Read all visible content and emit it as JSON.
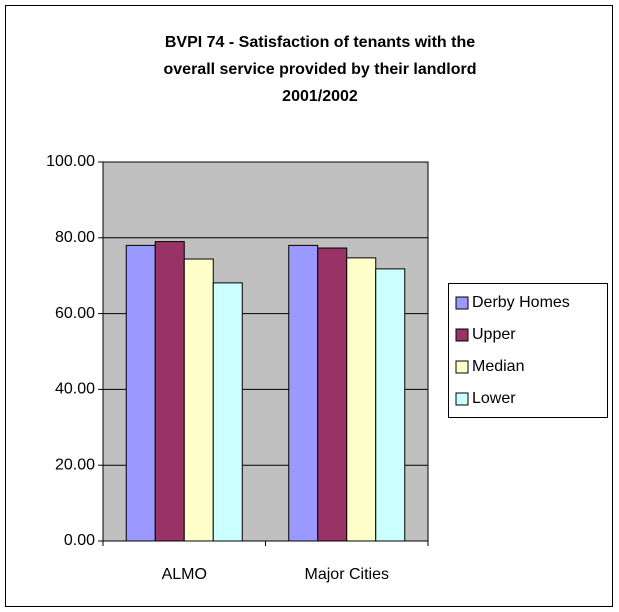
{
  "chart_data": {
    "type": "bar",
    "title": [
      "BVPI 74 - Satisfaction of tenants with the",
      "overall service provided by their landlord",
      "2001/2002"
    ],
    "categories": [
      "ALMO",
      "Major Cities"
    ],
    "series": [
      {
        "name": "Derby Homes",
        "color": "#9999ff",
        "values": [
          78,
          78
        ]
      },
      {
        "name": "Upper",
        "color": "#993366",
        "values": [
          79,
          77.3
        ]
      },
      {
        "name": "Median",
        "color": "#ffffcc",
        "values": [
          74.4,
          74.7
        ]
      },
      {
        "name": "Lower",
        "color": "#ccffff",
        "values": [
          68.1,
          71.8
        ]
      }
    ],
    "ylim": [
      0,
      100
    ],
    "yticks": [
      {
        "value": 0,
        "label": "0.00"
      },
      {
        "value": 20,
        "label": "20.00"
      },
      {
        "value": 40,
        "label": "40.00"
      },
      {
        "value": 60,
        "label": "60.00"
      },
      {
        "value": 80,
        "label": "80.00"
      },
      {
        "value": 100,
        "label": "100.00"
      }
    ],
    "grid": true,
    "legend": "right",
    "plot_background": "#c0c0c0"
  }
}
